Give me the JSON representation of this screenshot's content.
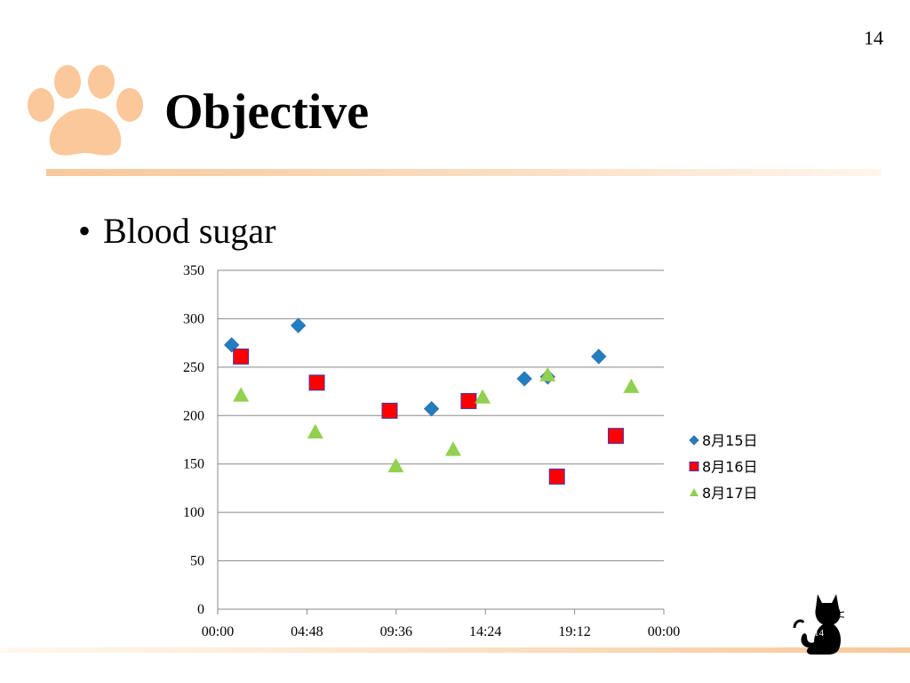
{
  "slide": {
    "page_number": "14",
    "title": "Objective",
    "bullet": "Blood sugar",
    "cat_page_number": "14",
    "accent_color": "#f9c99b"
  },
  "chart_data": {
    "type": "scatter",
    "title": "",
    "xlabel": "",
    "ylabel": "",
    "x_ticks": [
      "00:00",
      "04:48",
      "09:36",
      "14:24",
      "19:12",
      "00:00"
    ],
    "xlim_minutes": [
      0,
      1440
    ],
    "ylim": [
      0,
      350
    ],
    "y_ticks": [
      0,
      50,
      100,
      150,
      200,
      250,
      300,
      350
    ],
    "grid": "horizontal",
    "legend": "right",
    "series": [
      {
        "name": "8月15日",
        "marker": "diamond",
        "color": "#1f7fbf",
        "points": [
          {
            "x": "00:45",
            "y": 273
          },
          {
            "x": "04:20",
            "y": 293
          },
          {
            "x": "11:30",
            "y": 207
          },
          {
            "x": "16:30",
            "y": 238
          },
          {
            "x": "17:45",
            "y": 240
          },
          {
            "x": "20:30",
            "y": 261
          }
        ]
      },
      {
        "name": "8月16日",
        "marker": "square",
        "color": "#ff0000",
        "points": [
          {
            "x": "01:15",
            "y": 261
          },
          {
            "x": "05:20",
            "y": 234
          },
          {
            "x": "09:15",
            "y": 205
          },
          {
            "x": "13:30",
            "y": 215
          },
          {
            "x": "18:15",
            "y": 137
          },
          {
            "x": "21:25",
            "y": 179
          }
        ]
      },
      {
        "name": "8月17日",
        "marker": "triangle",
        "color": "#92d050",
        "points": [
          {
            "x": "01:15",
            "y": 221
          },
          {
            "x": "05:15",
            "y": 183
          },
          {
            "x": "09:35",
            "y": 148
          },
          {
            "x": "12:40",
            "y": 165
          },
          {
            "x": "14:15",
            "y": 219
          },
          {
            "x": "17:45",
            "y": 242
          },
          {
            "x": "22:15",
            "y": 230
          }
        ]
      }
    ]
  }
}
